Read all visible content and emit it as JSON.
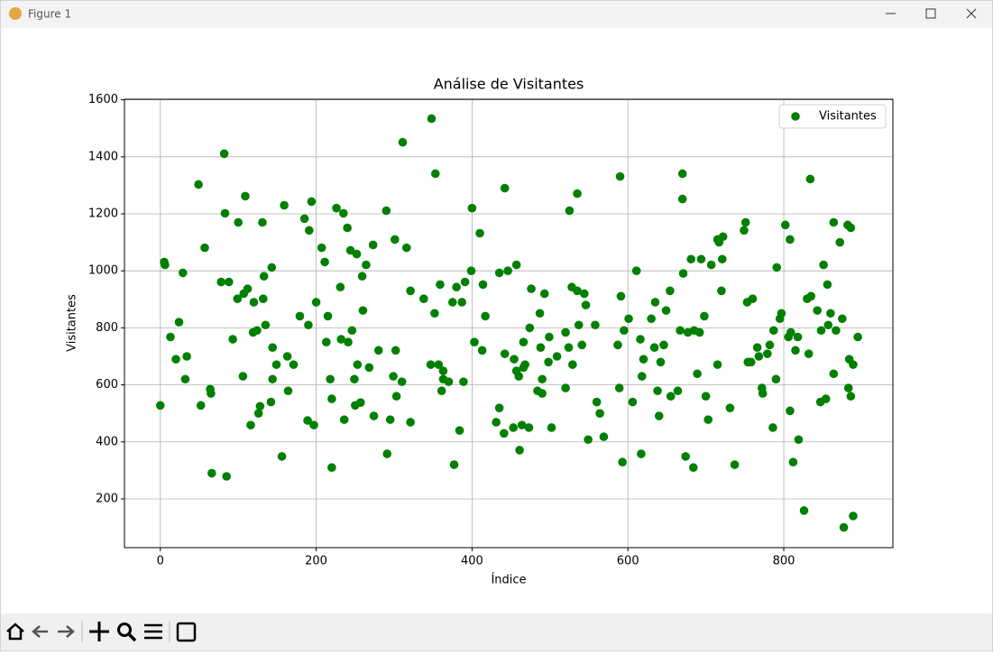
{
  "window": {
    "title": "Figure 1"
  },
  "chart_data": {
    "type": "scatter",
    "title": "Análise de Visitantes",
    "xlabel": "Índice",
    "ylabel": "Visitantes",
    "x": [
      0,
      5,
      6,
      13,
      20,
      24,
      29,
      32,
      34,
      49,
      52,
      57,
      64,
      65,
      66,
      78,
      82,
      83,
      85,
      88,
      93,
      99,
      100,
      106,
      107,
      109,
      112,
      116,
      119,
      120,
      124,
      126,
      128,
      131,
      132,
      133,
      135,
      142,
      143,
      144,
      144,
      149,
      156,
      159,
      163,
      164,
      171,
      179,
      185,
      189,
      190,
      191,
      194,
      197,
      200,
      207,
      211,
      213,
      215,
      218,
      220,
      220,
      226,
      231,
      232,
      235,
      236,
      240,
      241,
      244,
      246,
      250,
      249,
      253,
      252,
      257,
      259,
      260,
      264,
      268,
      273,
      274,
      280,
      290,
      291,
      295,
      299,
      301,
      302,
      303,
      310,
      311,
      316,
      321,
      321,
      338,
      347,
      348,
      352,
      353,
      357,
      359,
      361,
      363,
      363,
      370,
      375,
      377,
      380,
      384,
      387,
      389,
      391,
      399,
      400,
      403,
      410,
      414,
      413,
      417,
      431,
      435,
      435,
      441,
      442,
      442,
      446,
      453,
      454,
      457,
      457,
      460,
      461,
      464,
      466,
      466,
      468,
      473,
      474,
      476,
      484,
      487,
      488,
      490,
      490,
      493,
      498,
      499,
      502,
      509,
      520,
      520,
      524,
      525,
      528,
      529,
      535,
      535,
      537,
      541,
      544,
      546,
      549,
      558,
      560,
      564,
      569,
      587,
      589,
      590,
      591,
      593,
      595,
      601,
      606,
      611,
      616,
      617,
      618,
      620,
      630,
      634,
      635,
      638,
      640,
      642,
      646,
      649,
      654,
      655,
      664,
      667,
      670,
      670,
      671,
      674,
      677,
      681,
      684,
      685,
      689,
      692,
      694,
      698,
      700,
      703,
      707,
      715,
      715,
      717,
      720,
      721,
      722,
      731,
      737,
      749,
      751,
      753,
      754,
      758,
      760,
      766,
      768,
      772,
      773,
      779,
      782,
      786,
      787,
      790,
      791,
      795,
      797,
      802,
      806,
      808,
      808,
      809,
      812,
      815,
      818,
      819,
      826,
      830,
      832,
      834,
      835,
      843,
      847,
      848,
      851,
      854,
      856,
      857,
      860,
      864,
      864,
      867,
      872,
      875,
      877,
      882,
      883,
      884,
      886,
      886,
      889,
      889,
      895
    ],
    "series": [
      {
        "name": "Visitantes",
        "color": "#008000",
        "values": [
          528,
          1031,
          1021,
          768,
          690,
          820,
          993,
          620,
          700,
          1303,
          528,
          1081,
          585,
          570,
          290,
          961,
          1411,
          1202,
          279,
          961,
          760,
          902,
          1170,
          630,
          920,
          1262,
          937,
          459,
          784,
          890,
          791,
          500,
          525,
          1170,
          902,
          981,
          810,
          540,
          1012,
          731,
          620,
          671,
          349,
          1230,
          700,
          579,
          671,
          841,
          1183,
          475,
          810,
          1142,
          1243,
          459,
          890,
          1081,
          1031,
          750,
          841,
          620,
          551,
          310,
          1220,
          943,
          760,
          1202,
          478,
          1151,
          750,
          1072,
          791,
          528,
          620,
          671,
          1059,
          538,
          981,
          861,
          1021,
          661,
          1091,
          491,
          721,
          1211,
          358,
          478,
          630,
          1110,
          721,
          560,
          611,
          1451,
          1081,
          930,
          469,
          902,
          671,
          1534,
          851,
          1341,
          671,
          952,
          579,
          649,
          620,
          611,
          890,
          320,
          943,
          440,
          890,
          611,
          961,
          1000,
          1220,
          750,
          1132,
          952,
          721,
          841,
          469,
          519,
          993,
          430,
          709,
          1290,
          1000,
          450,
          690,
          649,
          1021,
          630,
          371,
          459,
          661,
          750,
          671,
          450,
          800,
          937,
          579,
          851,
          731,
          570,
          620,
          920,
          680,
          768,
          450,
          700,
          784,
          589,
          731,
          1211,
          943,
          671,
          930,
          1271,
          810,
          740,
          920,
          880,
          408,
          810,
          540,
          500,
          418,
          740,
          589,
          1331,
          911,
          329,
          791,
          832,
          540,
          1000,
          760,
          358,
          630,
          690,
          832,
          731,
          890,
          579,
          491,
          680,
          740,
          861,
          930,
          560,
          579,
          791,
          1252,
          1341,
          991,
          349,
          784,
          1041,
          310,
          791,
          639,
          784,
          1041,
          841,
          560,
          478,
          1021,
          671,
          1110,
          1100,
          930,
          1041,
          1120,
          519,
          320,
          1142,
          1170,
          890,
          680,
          680,
          902,
          731,
          700,
          589,
          570,
          709,
          740,
          450,
          791,
          620,
          1012,
          832,
          851,
          1161,
          768,
          509,
          1110,
          784,
          329,
          721,
          768,
          408,
          159,
          902,
          709,
          1322,
          911,
          861,
          540,
          791,
          1021,
          551,
          952,
          810,
          851,
          1170,
          639,
          791,
          1100,
          832,
          100,
          1161,
          589,
          690,
          1151,
          560,
          671,
          140,
          768
        ]
      }
    ],
    "xlim": [
      -46,
      940
    ],
    "ylim": [
      29,
      1602
    ],
    "xticks": [
      0,
      200,
      400,
      600,
      800
    ],
    "yticks": [
      200,
      400,
      600,
      800,
      1000,
      1200,
      1400,
      1600
    ],
    "grid": true,
    "legend": "upper right"
  }
}
